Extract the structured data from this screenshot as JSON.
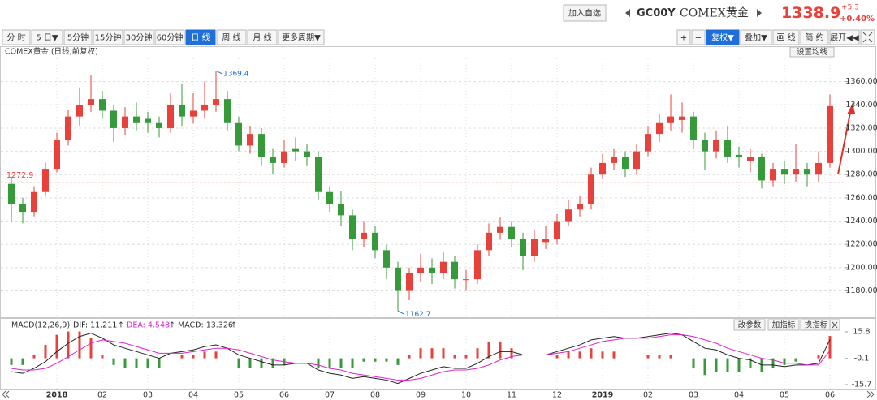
{
  "header": {
    "add_button": "加入自选",
    "code": "GC00Y",
    "name": "COMEX黄金",
    "price": "1338.9",
    "change": "+5.3",
    "change_pct": "+0.40%"
  },
  "toolbar": {
    "left": [
      "分 时",
      "5 日▼",
      "5分钟",
      "15分钟",
      "30分钟",
      "60分钟",
      "日 线",
      "周 线",
      "月 线",
      "更多周期▼"
    ],
    "active": "日 线",
    "right": [
      "+",
      "−",
      "复权▼",
      "叠加▼",
      "画 线",
      "简 约",
      "展开◀◀"
    ]
  },
  "chart_data": [
    {
      "type": "candlestick",
      "title": "COMEX黄金 (日线,前复权)",
      "button": "设置均线",
      "up_color": "#e8403b",
      "down_color": "#36993a",
      "open": [
        1272,
        1255,
        1248,
        1265,
        1285,
        1310,
        1330,
        1340,
        1345,
        1335,
        1320,
        1330,
        1328,
        1325,
        1320,
        1340,
        1330,
        1335,
        1340,
        1345,
        1325,
        1305,
        1315,
        1295,
        1290,
        1302,
        1300,
        1295,
        1265,
        1255,
        1245,
        1225,
        1230,
        1215,
        1200,
        1180,
        1195,
        1200,
        1195,
        1205,
        1190,
        1190,
        1215,
        1230,
        1235,
        1225,
        1210,
        1222,
        1225,
        1240,
        1250,
        1255,
        1280,
        1290,
        1295,
        1285,
        1300,
        1315,
        1325,
        1327,
        1330,
        1310,
        1300,
        1310,
        1297,
        1292,
        1295,
        1275,
        1285,
        1280,
        1285,
        1280,
        1290
      ],
      "high": [
        1278,
        1260,
        1270,
        1290,
        1316,
        1336,
        1355,
        1366,
        1352,
        1340,
        1338,
        1342,
        1334,
        1330,
        1350,
        1358,
        1350,
        1360,
        1369.4,
        1352,
        1330,
        1322,
        1320,
        1302,
        1310,
        1312,
        1306,
        1300,
        1270,
        1266,
        1250,
        1240,
        1236,
        1220,
        1205,
        1200,
        1212,
        1208,
        1214,
        1210,
        1198,
        1220,
        1238,
        1243,
        1240,
        1230,
        1232,
        1236,
        1246,
        1258,
        1262,
        1286,
        1298,
        1302,
        1300,
        1306,
        1322,
        1332,
        1349,
        1342,
        1334,
        1316,
        1318,
        1322,
        1304,
        1302,
        1298,
        1290,
        1292,
        1306,
        1290,
        1300,
        1349
      ],
      "low": [
        1240,
        1238,
        1244,
        1262,
        1282,
        1305,
        1322,
        1334,
        1328,
        1308,
        1314,
        1318,
        1316,
        1312,
        1316,
        1322,
        1324,
        1328,
        1334,
        1318,
        1300,
        1298,
        1288,
        1280,
        1286,
        1292,
        1288,
        1258,
        1248,
        1236,
        1215,
        1218,
        1208,
        1190,
        1162.7,
        1172,
        1188,
        1186,
        1190,
        1182,
        1180,
        1186,
        1210,
        1224,
        1218,
        1198,
        1205,
        1216,
        1220,
        1236,
        1244,
        1250,
        1276,
        1284,
        1278,
        1280,
        1296,
        1308,
        1318,
        1316,
        1302,
        1284,
        1294,
        1290,
        1286,
        1282,
        1268,
        1270,
        1272,
        1274,
        1270,
        1274,
        1286
      ],
      "close": [
        1255,
        1248,
        1265,
        1285,
        1310,
        1330,
        1340,
        1345,
        1335,
        1320,
        1330,
        1325,
        1325,
        1320,
        1340,
        1330,
        1335,
        1340,
        1345,
        1325,
        1305,
        1315,
        1295,
        1290,
        1300,
        1300,
        1295,
        1265,
        1255,
        1245,
        1225,
        1230,
        1215,
        1200,
        1180,
        1195,
        1200,
        1195,
        1205,
        1190,
        1190,
        1215,
        1230,
        1235,
        1225,
        1210,
        1225,
        1225,
        1240,
        1250,
        1255,
        1280,
        1290,
        1295,
        1285,
        1300,
        1315,
        1325,
        1330,
        1330,
        1310,
        1300,
        1310,
        1295,
        1295,
        1295,
        1275,
        1285,
        1280,
        1285,
        1280,
        1290,
        1338.9
      ],
      "reference": 1272.9,
      "ylim": [
        1158,
        1380
      ],
      "yticks": [
        {
          "value": 1180,
          "label": "1180.00"
        },
        {
          "value": 1200,
          "label": "1200.00"
        },
        {
          "value": 1220,
          "label": "1220.00"
        },
        {
          "value": 1240,
          "label": "1240.00"
        },
        {
          "value": 1260,
          "label": "1260.00"
        },
        {
          "value": 1280,
          "label": "1280.00"
        },
        {
          "value": 1300,
          "label": "1300.00"
        },
        {
          "value": 1320,
          "label": "1320.00"
        },
        {
          "value": 1340,
          "label": "1340.00"
        },
        {
          "value": 1360,
          "label": "1360.00"
        }
      ],
      "grid": true
    },
    {
      "type": "macd",
      "title": "MACD(12,26,9)",
      "buttons": [
        "改参数",
        "加指标",
        "换指标"
      ],
      "categories": [
        null,
        null,
        null,
        null,
        "2018",
        null,
        null,
        null,
        "02",
        null,
        null,
        null,
        "03",
        null,
        null,
        null,
        "04",
        null,
        null,
        null,
        "05",
        null,
        null,
        null,
        "06",
        null,
        null,
        null,
        "07",
        null,
        null,
        null,
        "08",
        null,
        null,
        null,
        "09",
        null,
        null,
        null,
        "10",
        null,
        null,
        null,
        "11",
        null,
        null,
        null,
        "12",
        null,
        null,
        null,
        "2019",
        null,
        null,
        null,
        "02",
        null,
        null,
        null,
        "03",
        null,
        null,
        null,
        "04",
        null,
        null,
        null,
        "05",
        null,
        null,
        null,
        "06"
      ],
      "series": [
        {
          "name": "DIF: 11.211",
          "color": "#222222",
          "values": [
            -8,
            -9,
            -6,
            -2,
            4,
            9,
            13,
            15,
            12,
            8,
            6,
            4,
            2,
            0,
            3,
            4,
            5,
            7,
            8,
            6,
            2,
            0,
            -2,
            -4,
            -4,
            -3,
            -3,
            -7,
            -9,
            -10,
            -12,
            -11,
            -12,
            -13,
            -15,
            -12,
            -9,
            -7,
            -5,
            -6,
            -6,
            -3,
            1,
            4,
            4,
            2,
            2,
            2,
            4,
            6,
            8,
            11,
            12,
            13,
            12,
            12,
            13,
            14,
            15,
            14,
            10,
            6,
            5,
            2,
            0,
            -1,
            -4,
            -4,
            -5,
            -4,
            -4,
            -3,
            11.211
          ]
        },
        {
          "name": "DEA: 4.548",
          "color": "#e020d0",
          "values": [
            -6,
            -7,
            -7,
            -6,
            -3,
            1,
            5,
            9,
            11,
            10,
            9,
            7,
            5,
            3,
            3,
            3,
            4,
            5,
            6,
            6,
            5,
            3,
            1,
            -1,
            -2,
            -3,
            -3,
            -4,
            -6,
            -7,
            -9,
            -10,
            -11,
            -12,
            -13,
            -13,
            -12,
            -10,
            -8,
            -7,
            -7,
            -6,
            -4,
            -1,
            1,
            2,
            2,
            2,
            3,
            4,
            6,
            8,
            10,
            11,
            12,
            12,
            12,
            13,
            14,
            14,
            13,
            11,
            9,
            6,
            4,
            2,
            0,
            -1,
            -3,
            -3,
            -4,
            -4,
            4.548
          ]
        }
      ],
      "bars": {
        "name": "MACD: 13.326",
        "values": [
          -4,
          -4,
          2,
          8,
          14,
          16,
          16,
          12,
          2,
          -4,
          -6,
          -6,
          -6,
          -6,
          0,
          2,
          2,
          4,
          4,
          0,
          -6,
          -6,
          -6,
          -6,
          -4,
          0,
          0,
          -6,
          -6,
          -6,
          -6,
          -2,
          -2,
          -2,
          -4,
          2,
          6,
          6,
          6,
          2,
          2,
          6,
          10,
          10,
          6,
          0,
          0,
          0,
          2,
          4,
          4,
          6,
          4,
          4,
          0,
          0,
          2,
          2,
          2,
          0,
          -6,
          -10,
          -8,
          -8,
          -8,
          -6,
          -8,
          -6,
          -4,
          -2,
          0,
          2,
          13.326
        ],
        "up_color": "#e8403b",
        "down_color": "#36993a"
      },
      "ylim": [
        -18.6,
        21.1
      ],
      "yticks": [
        -15.7,
        -0.1,
        15.8
      ]
    }
  ]
}
